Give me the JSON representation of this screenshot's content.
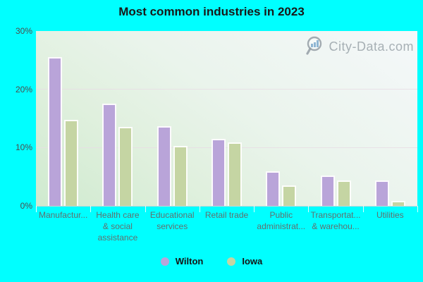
{
  "page": {
    "background": "#00ffff"
  },
  "title": "Most common industries in 2023",
  "watermark": {
    "text": "City-Data.com",
    "icon": "magnifier-barchart-icon"
  },
  "chart_data": {
    "type": "bar",
    "title": "Most common industries in 2023",
    "categories": [
      "Manufactur...",
      "Health care & social assistance",
      "Educational services",
      "Retail trade",
      "Public administrat...",
      "Transportat... & warehou...",
      "Utilities"
    ],
    "category_label_lines": [
      [
        "Manufactur..."
      ],
      [
        "Health care",
        "& social",
        "assistance"
      ],
      [
        "Educational",
        "services"
      ],
      [
        "Retail trade"
      ],
      [
        "Public",
        "administrat..."
      ],
      [
        "Transportat...",
        "& warehou..."
      ],
      [
        "Utilities"
      ]
    ],
    "series": [
      {
        "name": "Wilton",
        "color": "#b9a4d9",
        "values": [
          25.5,
          17.5,
          13.7,
          11.5,
          5.9,
          5.2,
          4.3
        ]
      },
      {
        "name": "Iowa",
        "color": "#c5d5a3",
        "values": [
          14.7,
          13.5,
          10.3,
          10.9,
          3.5,
          4.4,
          0.8
        ]
      }
    ],
    "xlabel": "",
    "ylabel": "",
    "ylim": [
      0,
      30
    ],
    "ytick_values": [
      30,
      20,
      10,
      0
    ],
    "ytick_labels": [
      "30%",
      "20%",
      "10%",
      "0%"
    ],
    "grid": "horizontal",
    "legend_position": "bottom"
  }
}
